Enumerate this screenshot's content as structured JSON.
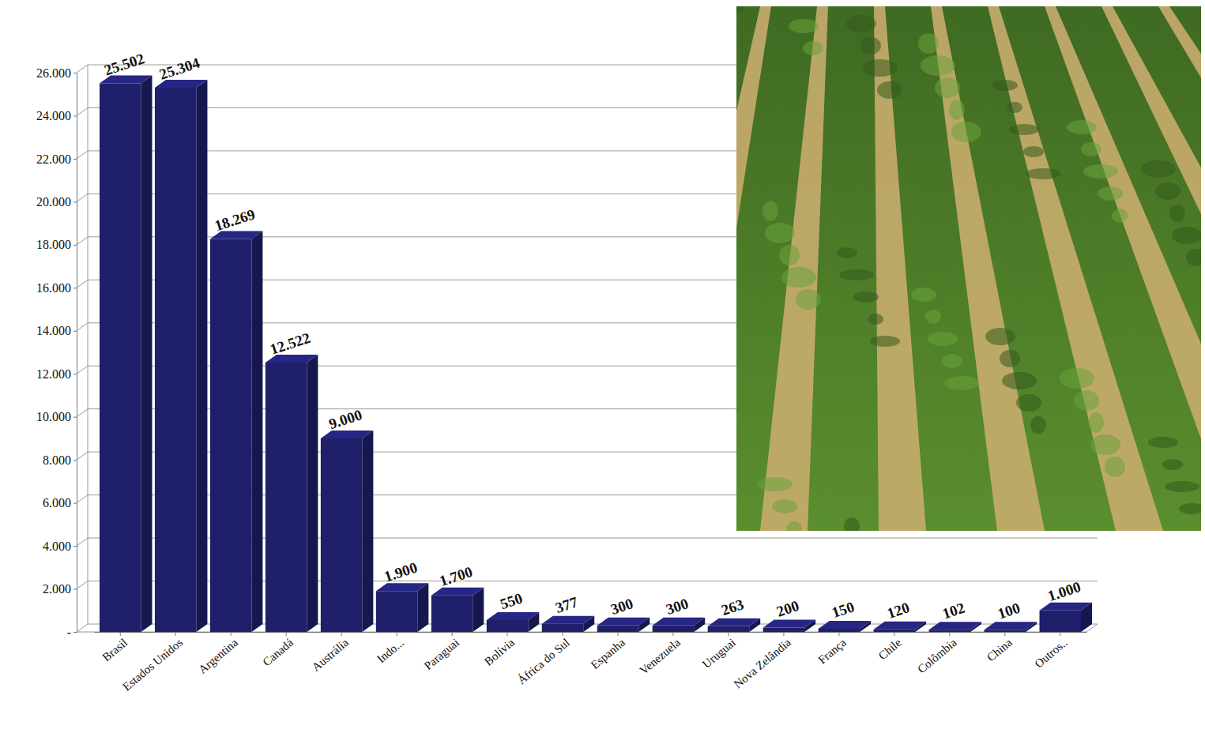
{
  "chart_data": {
    "type": "bar",
    "categories": [
      "Brasil",
      "Estados Unidos",
      "Argentina",
      "Canadá",
      "Austrália",
      "Indo...",
      "Paraguai",
      "Bolívia",
      "África do Sul",
      "Espanha",
      "Venezuela",
      "Uruguai",
      "Nova Zelândia",
      "França",
      "Chile",
      "Colômbia",
      "China",
      "Outros.."
    ],
    "values": [
      25502,
      25304,
      18269,
      12522,
      9000,
      1900,
      1700,
      550,
      377,
      300,
      300,
      263,
      200,
      150,
      120,
      102,
      100,
      1000
    ],
    "value_labels": [
      "25.502",
      "25.304",
      "18.269",
      "12.522",
      "9.000",
      "1.900",
      "1.700",
      "550",
      "377",
      "300",
      "300",
      "263",
      "200",
      "150",
      "120",
      "102",
      "100",
      "1.000"
    ],
    "color": "#1f1f6b",
    "ylim": [
      0,
      26000
    ],
    "yticks": [
      {
        "value": 0,
        "label": "-"
      },
      {
        "value": 2000,
        "label": "2.000"
      },
      {
        "value": 4000,
        "label": "4.000"
      },
      {
        "value": 6000,
        "label": "6.000"
      },
      {
        "value": 8000,
        "label": "8.000"
      },
      {
        "value": 10000,
        "label": "10.000"
      },
      {
        "value": 12000,
        "label": "12.000"
      },
      {
        "value": 14000,
        "label": "14.000"
      },
      {
        "value": 16000,
        "label": "16.000"
      },
      {
        "value": 18000,
        "label": "18.000"
      },
      {
        "value": 20000,
        "label": "20.000"
      },
      {
        "value": 22000,
        "label": "22.000"
      },
      {
        "value": 24000,
        "label": "24.000"
      },
      {
        "value": 26000,
        "label": "26.000"
      }
    ],
    "grid": true,
    "data_labels": true
  }
}
